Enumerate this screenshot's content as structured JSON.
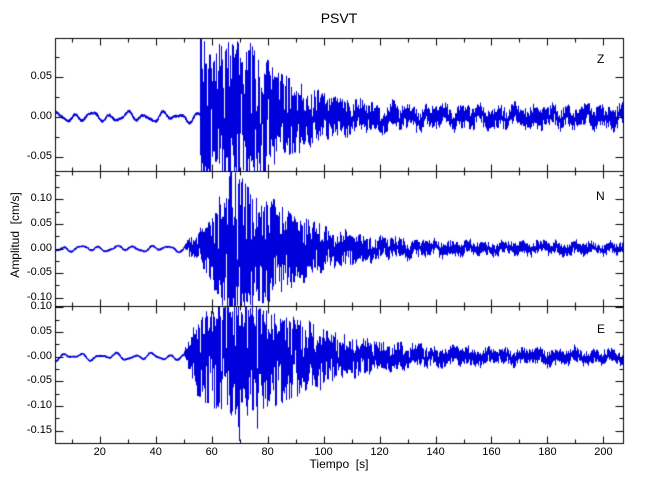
{
  "chart_data": {
    "type": "line",
    "subtype": "seismogram",
    "title": "PSVT",
    "x_axis": {
      "label": "Tiempo  [s]",
      "range": [
        4,
        207
      ],
      "major_ticks": [
        20,
        40,
        60,
        80,
        100,
        120,
        140,
        160,
        180,
        200
      ],
      "minor_tick_step": 10
    },
    "y_axis_label": "Amplitud  [cm/s]",
    "y_units": "cm/s",
    "line_color": "#0000dd",
    "axis_color": "#000000",
    "background": "#ffffff",
    "seed": 20,
    "sample_dt": 0.05,
    "panels": [
      {
        "label": "Z",
        "ylim": [
          -0.067,
          0.098
        ],
        "yticks": [
          {
            "v": 0.05,
            "label": "0.05"
          },
          {
            "v": 0.0,
            "label": "0.00"
          },
          {
            "v": -0.05,
            "label": "-0.05"
          }
        ],
        "y_minor_step": 0.025,
        "noise_amp": 0.007,
        "onset_time": 56,
        "peak_amplitude": 0.095,
        "min_amplitude": -0.063,
        "envelope": [
          [
            4,
            0
          ],
          [
            55.8,
            0
          ],
          [
            56.0,
            0.045
          ],
          [
            56.8,
            0.05
          ],
          [
            58,
            0.032
          ],
          [
            60,
            0.03
          ],
          [
            63,
            0.034
          ],
          [
            66,
            0.036
          ],
          [
            69,
            0.034
          ],
          [
            72,
            0.032
          ],
          [
            76,
            0.03
          ],
          [
            80,
            0.026
          ],
          [
            85,
            0.02
          ],
          [
            90,
            0.016
          ],
          [
            95,
            0.013
          ],
          [
            100,
            0.011
          ],
          [
            105,
            0.009
          ],
          [
            110,
            0.008
          ],
          [
            120,
            0.006
          ],
          [
            135,
            0.005
          ],
          [
            160,
            0.005
          ],
          [
            185,
            0.005
          ],
          [
            207,
            0.005
          ]
        ],
        "spikes": [
          [
            56.35,
            0.095
          ],
          [
            57.0,
            -0.048
          ],
          [
            59.8,
            0.06
          ],
          [
            61.5,
            -0.055
          ],
          [
            63.8,
            0.07
          ],
          [
            65.2,
            -0.05
          ],
          [
            67.9,
            0.088
          ],
          [
            68.8,
            -0.062
          ],
          [
            70.6,
            0.058
          ],
          [
            72.4,
            -0.06
          ],
          [
            74.8,
            0.05
          ],
          [
            77.5,
            -0.052
          ],
          [
            80.3,
            0.045
          ],
          [
            83,
            -0.04
          ],
          [
            86.5,
            0.038
          ]
        ]
      },
      {
        "label": "N",
        "ylim": [
          -0.117,
          0.158
        ],
        "yticks": [
          {
            "v": 0.1,
            "label": "0.10"
          },
          {
            "v": 0.05,
            "label": "0.05"
          },
          {
            "v": 0.0,
            "label": "0.00"
          },
          {
            "v": -0.05,
            "label": "-0.05"
          },
          {
            "v": -0.1,
            "label": "-0.10"
          }
        ],
        "y_minor_step": 0.025,
        "noise_amp": 0.007,
        "onset_time": 53,
        "peak_amplitude": 0.155,
        "min_amplitude": -0.115,
        "envelope": [
          [
            4,
            0
          ],
          [
            50,
            0
          ],
          [
            52,
            0.008
          ],
          [
            55,
            0.014
          ],
          [
            58,
            0.02
          ],
          [
            61,
            0.03
          ],
          [
            64,
            0.045
          ],
          [
            66,
            0.055
          ],
          [
            68,
            0.06
          ],
          [
            70,
            0.055
          ],
          [
            72,
            0.05
          ],
          [
            75,
            0.042
          ],
          [
            78,
            0.042
          ],
          [
            81,
            0.04
          ],
          [
            84,
            0.036
          ],
          [
            88,
            0.03
          ],
          [
            92,
            0.026
          ],
          [
            96,
            0.022
          ],
          [
            100,
            0.018
          ],
          [
            105,
            0.014
          ],
          [
            110,
            0.012
          ],
          [
            118,
            0.009
          ],
          [
            128,
            0.007
          ],
          [
            140,
            0.006
          ],
          [
            160,
            0.005
          ],
          [
            185,
            0.005
          ],
          [
            207,
            0.004
          ]
        ],
        "spikes": [
          [
            66.9,
            0.155
          ],
          [
            67.6,
            -0.1
          ],
          [
            68.4,
            0.12
          ],
          [
            69.3,
            -0.115
          ],
          [
            70.4,
            0.1
          ],
          [
            71.9,
            -0.09
          ],
          [
            73.5,
            0.09
          ],
          [
            76,
            -0.08
          ],
          [
            78.5,
            0.075
          ],
          [
            81,
            -0.07
          ],
          [
            84,
            0.065
          ],
          [
            87.5,
            0.06
          ],
          [
            90,
            -0.055
          ],
          [
            95,
            0.045
          ]
        ]
      },
      {
        "label": "E",
        "ylim": [
          -0.175,
          0.103
        ],
        "yticks": [
          {
            "v": 0.1,
            "label": "0.10"
          },
          {
            "v": 0.05,
            "label": "0.05"
          },
          {
            "v": 0.0,
            "label": "-0.00"
          },
          {
            "v": -0.05,
            "label": "-0.05"
          },
          {
            "v": -0.1,
            "label": "-0.10"
          },
          {
            "v": -0.15,
            "label": "-0.15"
          }
        ],
        "y_minor_step": 0.025,
        "noise_amp": 0.008,
        "onset_time": 52,
        "peak_amplitude": 0.1,
        "min_amplitude": -0.17,
        "envelope": [
          [
            4,
            0
          ],
          [
            50,
            0
          ],
          [
            52,
            0.012
          ],
          [
            54,
            0.025
          ],
          [
            56,
            0.032
          ],
          [
            58,
            0.035
          ],
          [
            60,
            0.038
          ],
          [
            63,
            0.04
          ],
          [
            66,
            0.045
          ],
          [
            69,
            0.048
          ],
          [
            72,
            0.045
          ],
          [
            75,
            0.042
          ],
          [
            78,
            0.04
          ],
          [
            82,
            0.038
          ],
          [
            86,
            0.034
          ],
          [
            90,
            0.03
          ],
          [
            95,
            0.025
          ],
          [
            100,
            0.021
          ],
          [
            106,
            0.017
          ],
          [
            112,
            0.014
          ],
          [
            120,
            0.011
          ],
          [
            130,
            0.009
          ],
          [
            142,
            0.007
          ],
          [
            160,
            0.006
          ],
          [
            185,
            0.006
          ],
          [
            207,
            0.005
          ]
        ],
        "spikes": [
          [
            61,
            0.08
          ],
          [
            63.5,
            -0.09
          ],
          [
            65.8,
            0.1
          ],
          [
            67.3,
            -0.11
          ],
          [
            69.8,
            -0.17
          ],
          [
            70.6,
            0.09
          ],
          [
            72.3,
            -0.1
          ],
          [
            74,
            0.085
          ],
          [
            76.4,
            -0.145
          ],
          [
            78.2,
            0.08
          ],
          [
            80.5,
            -0.09
          ],
          [
            83,
            0.075
          ],
          [
            86,
            -0.07
          ],
          [
            90,
            0.065
          ],
          [
            100,
            0.055
          ]
        ]
      }
    ]
  }
}
